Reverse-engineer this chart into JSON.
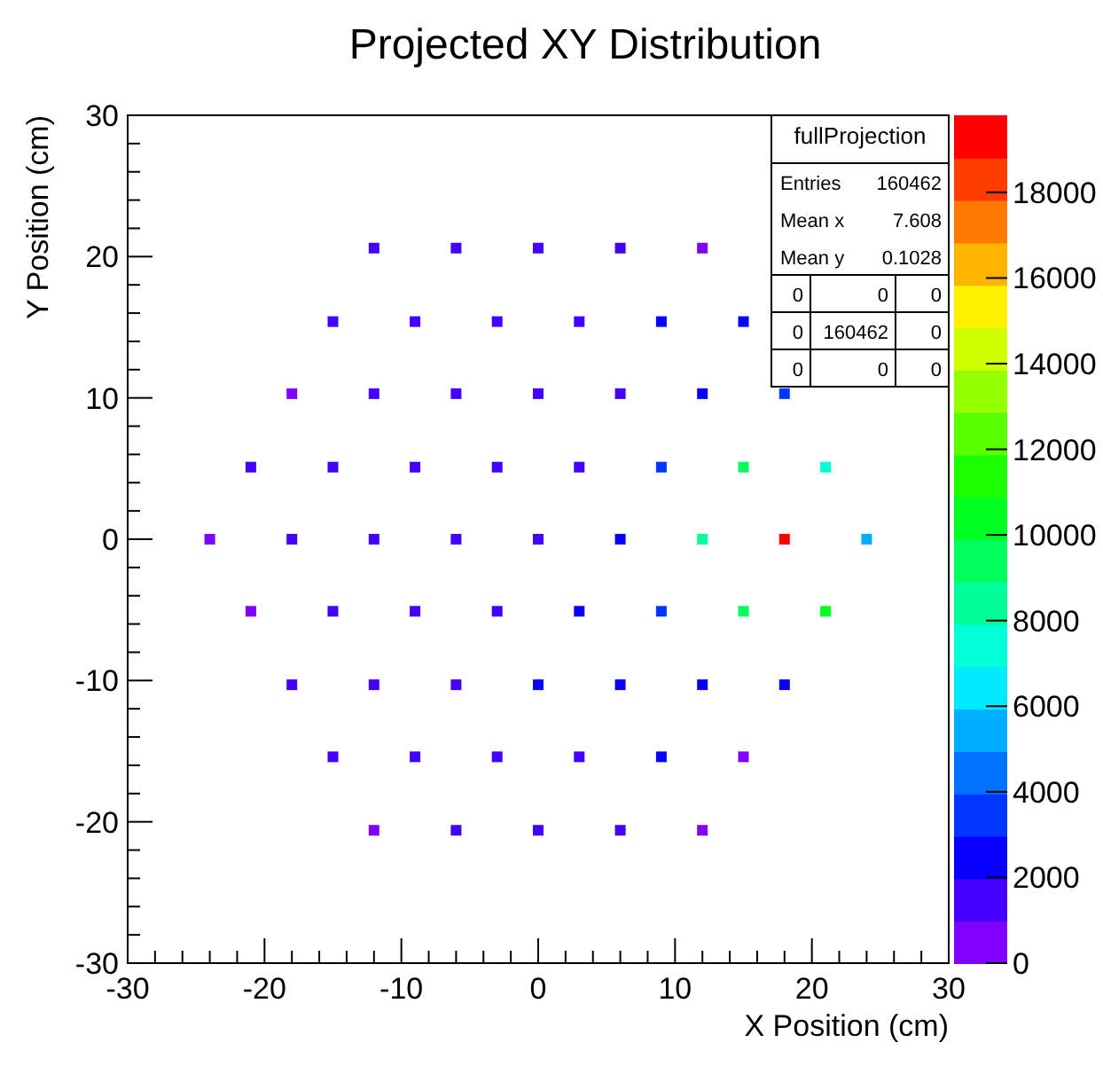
{
  "chart_data": {
    "type": "scatter",
    "title": "Projected XY Distribution",
    "xlabel": "X Position (cm)",
    "ylabel": "Y Position (cm)",
    "marker": "square",
    "xlim": [
      -30,
      30
    ],
    "ylim": [
      -30,
      30
    ],
    "xticks": [
      -30,
      {
        "value": -28,
        "label": null
      },
      {
        "value": -26,
        "label": null
      },
      {
        "value": -24,
        "label": null
      },
      {
        "value": -22,
        "label": null
      },
      -20,
      {
        "value": -18,
        "label": null
      },
      {
        "value": -16,
        "label": null
      },
      {
        "value": -14,
        "label": null
      },
      {
        "value": -12,
        "label": null
      },
      -10,
      {
        "value": -8,
        "label": null
      },
      {
        "value": -6,
        "label": null
      },
      {
        "value": -4,
        "label": null
      },
      {
        "value": -2,
        "label": null
      },
      0,
      {
        "value": 2,
        "label": null
      },
      {
        "value": 4,
        "label": null
      },
      {
        "value": 6,
        "label": null
      },
      {
        "value": 8,
        "label": null
      },
      10,
      {
        "value": 12,
        "label": null
      },
      {
        "value": 14,
        "label": null
      },
      {
        "value": 16,
        "label": null
      },
      {
        "value": 18,
        "label": null
      },
      20,
      {
        "value": 22,
        "label": null
      },
      {
        "value": 24,
        "label": null
      },
      {
        "value": 26,
        "label": null
      },
      {
        "value": 28,
        "label": null
      },
      30
    ],
    "yticks": [
      -30,
      {
        "value": -28,
        "label": null
      },
      {
        "value": -26,
        "label": null
      },
      {
        "value": -24,
        "label": null
      },
      {
        "value": -22,
        "label": null
      },
      -20,
      {
        "value": -18,
        "label": null
      },
      {
        "value": -16,
        "label": null
      },
      {
        "value": -14,
        "label": null
      },
      {
        "value": -12,
        "label": null
      },
      -10,
      {
        "value": -8,
        "label": null
      },
      {
        "value": -6,
        "label": null
      },
      {
        "value": -4,
        "label": null
      },
      {
        "value": -2,
        "label": null
      },
      0,
      {
        "value": 2,
        "label": null
      },
      {
        "value": 4,
        "label": null
      },
      {
        "value": 6,
        "label": null
      },
      {
        "value": 8,
        "label": null
      },
      10,
      {
        "value": 12,
        "label": null
      },
      {
        "value": 14,
        "label": null
      },
      {
        "value": 16,
        "label": null
      },
      {
        "value": 18,
        "label": null
      },
      20,
      {
        "value": 22,
        "label": null
      },
      {
        "value": 24,
        "label": null
      },
      {
        "value": 26,
        "label": null
      },
      {
        "value": 28,
        "label": null
      },
      30
    ],
    "clim": [
      0,
      19800
    ],
    "cticks": [
      0,
      2000,
      4000,
      6000,
      8000,
      10000,
      12000,
      14000,
      16000,
      18000
    ],
    "x": [
      -12,
      -6,
      0,
      6,
      12,
      -15,
      -9,
      -3,
      3,
      9,
      15,
      -18,
      -12,
      -6,
      0,
      6,
      12,
      18,
      -21,
      -15,
      -9,
      -3,
      3,
      9,
      15,
      21,
      -24,
      -18,
      -12,
      -6,
      0,
      6,
      12,
      18,
      24,
      -21,
      -15,
      -9,
      -3,
      3,
      9,
      15,
      21,
      -18,
      -12,
      -6,
      0,
      6,
      12,
      18,
      -15,
      -9,
      -3,
      3,
      9,
      15,
      -12,
      -6,
      0,
      6,
      12
    ],
    "values": [
      20.6,
      20.6,
      20.6,
      20.6,
      20.6,
      15.4,
      15.4,
      15.4,
      15.4,
      15.4,
      15.4,
      10.3,
      10.3,
      10.3,
      10.3,
      10.3,
      10.3,
      10.3,
      5.1,
      5.1,
      5.1,
      5.1,
      5.1,
      5.1,
      5.1,
      5.1,
      0,
      0,
      0,
      0,
      0,
      0,
      0,
      0,
      0,
      -5.1,
      -5.1,
      -5.1,
      -5.1,
      -5.1,
      -5.1,
      -5.1,
      -5.1,
      -10.3,
      -10.3,
      -10.3,
      -10.3,
      -10.3,
      -10.3,
      -10.3,
      -15.4,
      -15.4,
      -15.4,
      -15.4,
      -15.4,
      -15.4,
      -20.6,
      -20.6,
      -20.6,
      -20.6,
      -20.6
    ],
    "cvalues": [
      1500,
      1500,
      1500,
      1500,
      500,
      1500,
      1500,
      1500,
      1500,
      2500,
      2500,
      500,
      1500,
      1500,
      1500,
      1500,
      2500,
      3500,
      1500,
      1500,
      1500,
      1500,
      1500,
      3500,
      9000,
      7500,
      500,
      1500,
      1500,
      1500,
      1500,
      2500,
      8500,
      19000,
      5500,
      500,
      1500,
      1500,
      1500,
      2500,
      3500,
      9000,
      10000,
      1500,
      1500,
      1500,
      2500,
      2500,
      2500,
      2500,
      1500,
      1500,
      1500,
      1500,
      2500,
      500,
      500,
      1500,
      1500,
      1500,
      500
    ],
    "annotations": [
      "fullProjection",
      "Entries 160462",
      "Mean x 7.608",
      "Mean y 0.1028",
      "0 0 0",
      "0 160462 0",
      "0 0 0"
    ]
  }
}
